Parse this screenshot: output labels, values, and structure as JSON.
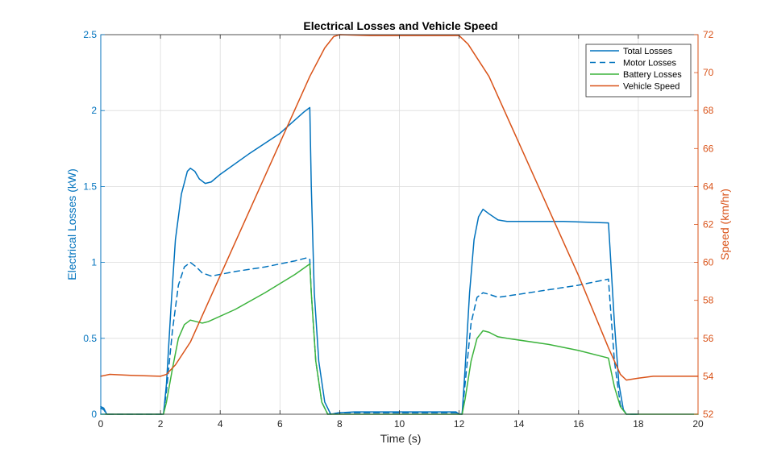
{
  "chart_data": {
    "type": "line",
    "title": "Electrical Losses and Vehicle Speed",
    "xlabel": "Time (s)",
    "ylabel_left": "Electrical Losses (kW)",
    "ylabel_right": "Speed (km/hr)",
    "xlim": [
      0,
      20
    ],
    "ylim_left": [
      0,
      2.5
    ],
    "ylim_right": [
      52,
      72
    ],
    "x_ticks": [
      "0",
      "2",
      "4",
      "6",
      "8",
      "10",
      "12",
      "14",
      "16",
      "18",
      "20"
    ],
    "y_left_ticks": [
      "0",
      "0.5",
      "1",
      "1.5",
      "2",
      "2.5"
    ],
    "y_right_ticks": [
      "52",
      "54",
      "56",
      "58",
      "60",
      "62",
      "64",
      "66",
      "68",
      "70",
      "72"
    ],
    "grid": true,
    "legend_position": "top-right",
    "colors": {
      "left_axis": "#0072BD",
      "right_axis": "#D95319",
      "total": "#0072BD",
      "motor": "#0072BD",
      "battery": "#3CB33C",
      "speed": "#D95319"
    },
    "series": [
      {
        "name": "Total Losses",
        "axis": "left",
        "style": "solid",
        "color_key": "total",
        "points": [
          [
            0,
            0.05
          ],
          [
            0.1,
            0.04
          ],
          [
            0.2,
            0.0
          ],
          [
            2.1,
            0.0
          ],
          [
            2.2,
            0.2
          ],
          [
            2.35,
            0.7
          ],
          [
            2.5,
            1.15
          ],
          [
            2.7,
            1.45
          ],
          [
            2.9,
            1.6
          ],
          [
            3.0,
            1.62
          ],
          [
            3.15,
            1.6
          ],
          [
            3.3,
            1.55
          ],
          [
            3.5,
            1.52
          ],
          [
            3.7,
            1.53
          ],
          [
            4.0,
            1.58
          ],
          [
            5.0,
            1.72
          ],
          [
            6.0,
            1.85
          ],
          [
            6.8,
            1.99
          ],
          [
            7.0,
            2.02
          ],
          [
            7.05,
            1.5
          ],
          [
            7.15,
            0.8
          ],
          [
            7.3,
            0.35
          ],
          [
            7.5,
            0.08
          ],
          [
            7.7,
            0.0
          ],
          [
            8.0,
            0.01
          ],
          [
            8.5,
            0.015
          ],
          [
            11.9,
            0.015
          ],
          [
            12.0,
            0.0
          ],
          [
            12.1,
            0.0
          ],
          [
            12.2,
            0.3
          ],
          [
            12.35,
            0.8
          ],
          [
            12.5,
            1.15
          ],
          [
            12.65,
            1.3
          ],
          [
            12.8,
            1.35
          ],
          [
            13.0,
            1.32
          ],
          [
            13.3,
            1.28
          ],
          [
            13.6,
            1.27
          ],
          [
            14.5,
            1.27
          ],
          [
            15.5,
            1.27
          ],
          [
            17.0,
            1.26
          ],
          [
            17.05,
            1.1
          ],
          [
            17.2,
            0.6
          ],
          [
            17.35,
            0.2
          ],
          [
            17.5,
            0.03
          ],
          [
            17.6,
            0.0
          ],
          [
            18,
            0.0
          ]
        ]
      },
      {
        "name": "Motor Losses",
        "axis": "left",
        "style": "dashed",
        "color_key": "motor",
        "points": [
          [
            0,
            0.04
          ],
          [
            0.1,
            0.03
          ],
          [
            0.2,
            0.0
          ],
          [
            2.1,
            0.0
          ],
          [
            2.2,
            0.15
          ],
          [
            2.4,
            0.55
          ],
          [
            2.6,
            0.85
          ],
          [
            2.8,
            0.97
          ],
          [
            3.0,
            1.0
          ],
          [
            3.2,
            0.97
          ],
          [
            3.4,
            0.93
          ],
          [
            3.7,
            0.91
          ],
          [
            4.5,
            0.94
          ],
          [
            5.5,
            0.97
          ],
          [
            6.5,
            1.01
          ],
          [
            6.9,
            1.03
          ],
          [
            7.0,
            1.02
          ],
          [
            7.05,
            0.8
          ],
          [
            7.2,
            0.35
          ],
          [
            7.4,
            0.08
          ],
          [
            7.6,
            0.0
          ],
          [
            8.0,
            0.01
          ],
          [
            11.9,
            0.01
          ],
          [
            12.1,
            0.0
          ],
          [
            12.2,
            0.2
          ],
          [
            12.4,
            0.6
          ],
          [
            12.6,
            0.77
          ],
          [
            12.8,
            0.8
          ],
          [
            13.0,
            0.79
          ],
          [
            13.3,
            0.77
          ],
          [
            14.0,
            0.79
          ],
          [
            15.0,
            0.82
          ],
          [
            16.0,
            0.85
          ],
          [
            17.0,
            0.89
          ],
          [
            17.05,
            0.75
          ],
          [
            17.2,
            0.35
          ],
          [
            17.4,
            0.06
          ],
          [
            17.6,
            0.0
          ],
          [
            18,
            0.0
          ]
        ]
      },
      {
        "name": "Battery Losses",
        "axis": "left",
        "style": "solid",
        "color_key": "battery",
        "points": [
          [
            0,
            0.0
          ],
          [
            2.1,
            0.0
          ],
          [
            2.2,
            0.08
          ],
          [
            2.4,
            0.3
          ],
          [
            2.6,
            0.5
          ],
          [
            2.8,
            0.59
          ],
          [
            3.0,
            0.62
          ],
          [
            3.2,
            0.61
          ],
          [
            3.4,
            0.6
          ],
          [
            3.6,
            0.61
          ],
          [
            4.5,
            0.69
          ],
          [
            5.5,
            0.8
          ],
          [
            6.5,
            0.92
          ],
          [
            7.0,
            0.99
          ],
          [
            7.05,
            0.8
          ],
          [
            7.2,
            0.35
          ],
          [
            7.4,
            0.08
          ],
          [
            7.6,
            0.0
          ],
          [
            12.1,
            0.0
          ],
          [
            12.2,
            0.1
          ],
          [
            12.4,
            0.35
          ],
          [
            12.6,
            0.5
          ],
          [
            12.8,
            0.55
          ],
          [
            13.0,
            0.54
          ],
          [
            13.3,
            0.51
          ],
          [
            13.6,
            0.5
          ],
          [
            15.0,
            0.46
          ],
          [
            16.0,
            0.42
          ],
          [
            17.0,
            0.37
          ],
          [
            17.05,
            0.32
          ],
          [
            17.2,
            0.18
          ],
          [
            17.4,
            0.05
          ],
          [
            17.6,
            0.0
          ],
          [
            18,
            0.0
          ],
          [
            20,
            0.0
          ]
        ]
      },
      {
        "name": "Vehicle Speed",
        "axis": "right",
        "style": "solid",
        "color_key": "speed",
        "points": [
          [
            0,
            54.0
          ],
          [
            0.3,
            54.1
          ],
          [
            1.0,
            54.05
          ],
          [
            2.0,
            54.0
          ],
          [
            2.2,
            54.1
          ],
          [
            2.5,
            54.6
          ],
          [
            3.0,
            55.8
          ],
          [
            4.0,
            59.3
          ],
          [
            5.0,
            62.8
          ],
          [
            6.0,
            66.3
          ],
          [
            7.0,
            69.8
          ],
          [
            7.5,
            71.3
          ],
          [
            7.8,
            71.9
          ],
          [
            8.0,
            72.0
          ],
          [
            9.0,
            71.95
          ],
          [
            12.0,
            71.95
          ],
          [
            12.3,
            71.5
          ],
          [
            13.0,
            69.8
          ],
          [
            14.0,
            66.3
          ],
          [
            15.0,
            62.8
          ],
          [
            16.0,
            59.3
          ],
          [
            17.0,
            55.5
          ],
          [
            17.4,
            54.1
          ],
          [
            17.6,
            53.8
          ],
          [
            18.0,
            53.9
          ],
          [
            18.5,
            54.0
          ],
          [
            20.0,
            54.0
          ]
        ]
      }
    ]
  }
}
